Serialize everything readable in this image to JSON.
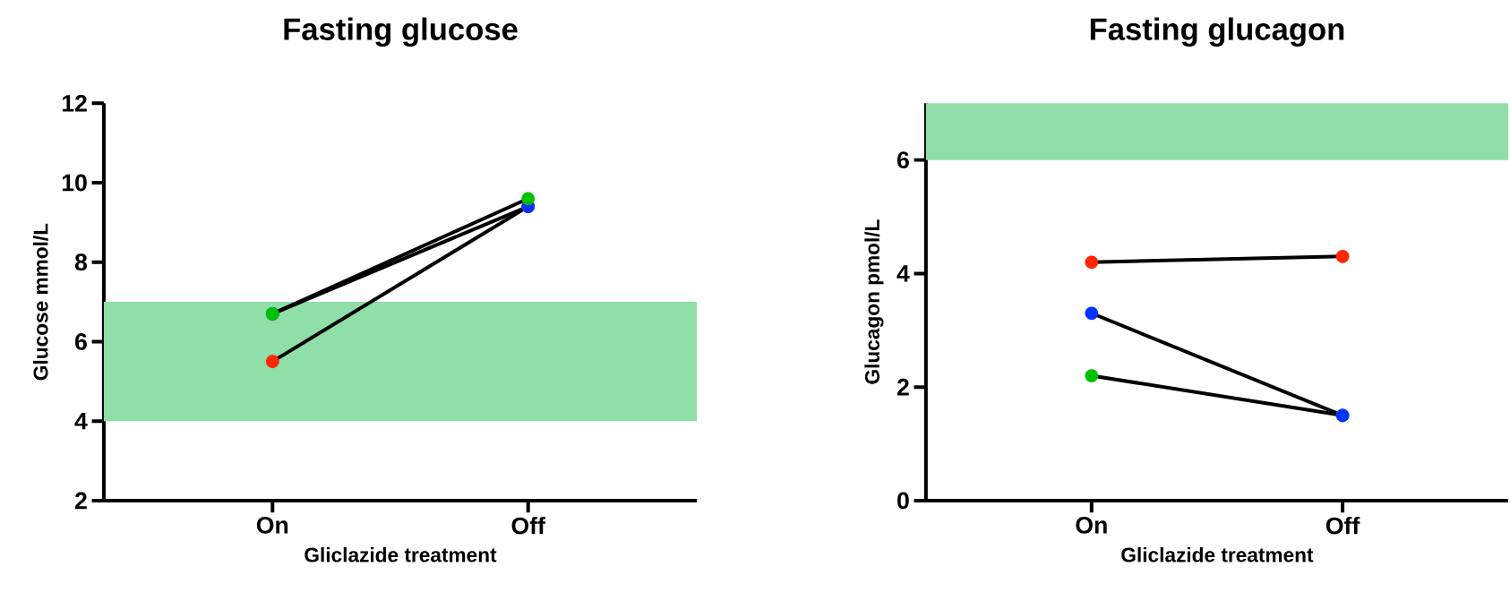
{
  "chart_data": [
    {
      "type": "line",
      "title": "Fasting glucose",
      "xlabel": "Gliclazide treatment",
      "ylabel": "Glucose mmol/L",
      "categories": [
        "On",
        "Off"
      ],
      "ylim": [
        2,
        12
      ],
      "yticks": [
        2,
        4,
        6,
        8,
        10,
        12
      ],
      "marker": "circle",
      "grid": false,
      "bands": [
        {
          "axis": "y",
          "from": 4,
          "to": 7,
          "color": "#90dea8"
        }
      ],
      "series": [
        {
          "color": "#ff2600",
          "values": [
            5.5,
            9.4
          ]
        },
        {
          "color": "#0433ff",
          "values": [
            6.7,
            9.4
          ]
        },
        {
          "color": "#00c000",
          "values": [
            6.7,
            9.6
          ]
        }
      ]
    },
    {
      "type": "line",
      "title": "Fasting glucagon",
      "xlabel": "Gliclazide treatment",
      "ylabel": "Glucagon pmol/L",
      "categories": [
        "On",
        "Off"
      ],
      "ylim": [
        0,
        7
      ],
      "yticks": [
        0,
        2,
        4,
        6
      ],
      "marker": "circle",
      "grid": false,
      "bands": [
        {
          "axis": "y",
          "from": 6,
          "to": 7,
          "color": "#90dea8"
        }
      ],
      "series": [
        {
          "color": "#ff2600",
          "values": [
            4.2,
            4.3
          ]
        },
        {
          "color": "#00c000",
          "values": [
            2.2,
            1.5
          ]
        },
        {
          "color": "#0433ff",
          "values": [
            3.3,
            1.5
          ]
        }
      ]
    }
  ]
}
